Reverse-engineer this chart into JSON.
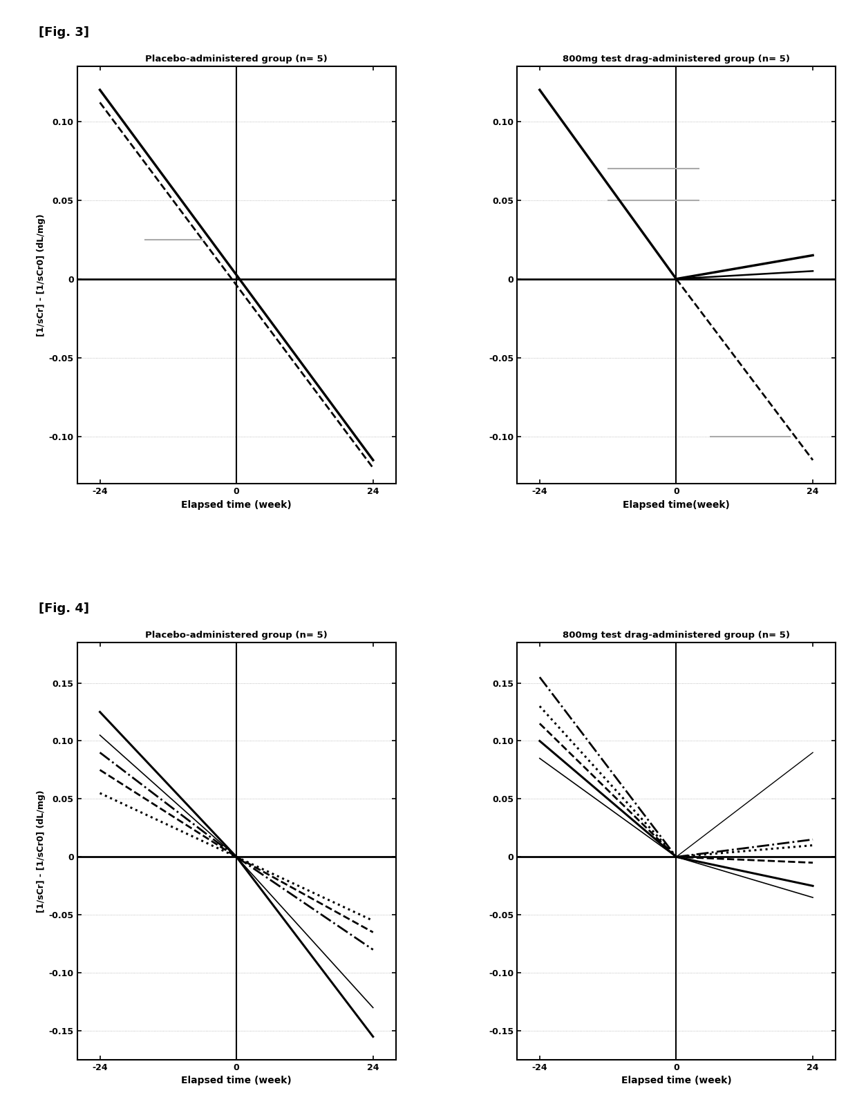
{
  "fig3_title_left": "Placebo-administered group (n= 5)",
  "fig3_title_right": "800mg test drag-administered group (n= 5)",
  "fig4_title_left": "Placebo-administered group (n= 5)",
  "fig4_title_right": "800mg test drag-administered group (n= 5)",
  "fig3_label": "[Fig. 3]",
  "fig4_label": "[Fig. 4]",
  "ylabel3": "[1/sCr] - [1/sCr0] (dL/mg)",
  "ylabel4": "[1/sCr] - [1/sCr0] (dL/mg)",
  "xlabel_left3": "Elapsed time (week)",
  "xlabel_right3": "Elapsed time(week)",
  "xlabel_left4": "Elapsed time (week)",
  "xlabel_right4": "Elapsed time (week)",
  "fig3_ylim": [
    -0.13,
    0.135
  ],
  "fig3_yticks": [
    -0.1,
    -0.05,
    0,
    0.05,
    0.1
  ],
  "fig3_xlim": [
    -28,
    28
  ],
  "fig3_xticks": [
    -24,
    0,
    24
  ],
  "fig4_ylim": [
    -0.175,
    0.185
  ],
  "fig4_yticks": [
    -0.15,
    -0.1,
    -0.05,
    0,
    0.05,
    0.1,
    0.15
  ],
  "fig4_xlim": [
    -28,
    28
  ],
  "fig4_xticks": [
    -24,
    0,
    24
  ],
  "background_color": "#ffffff"
}
